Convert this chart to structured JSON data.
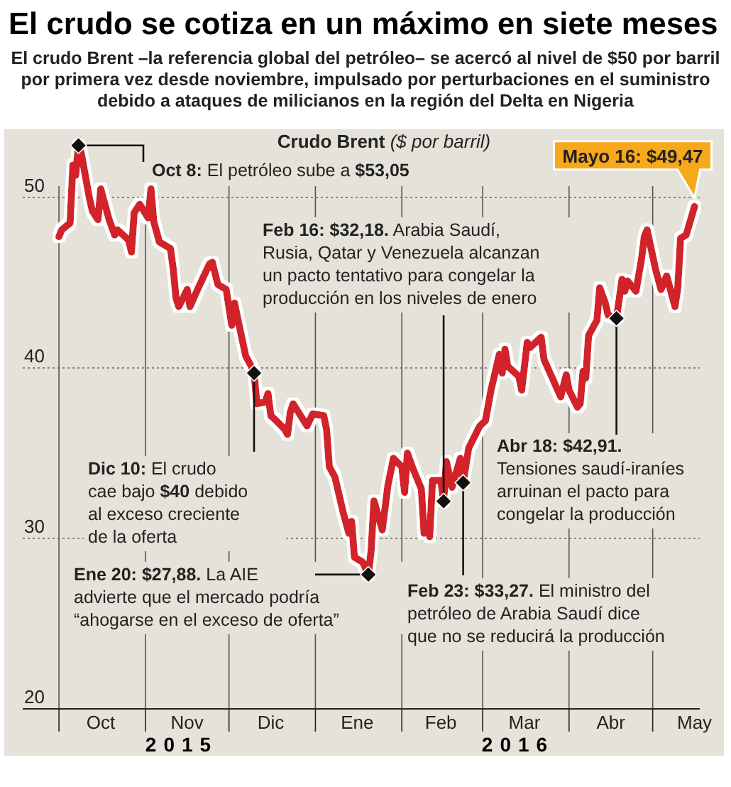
{
  "chart_data": {
    "type": "line",
    "title": "El crudo se cotiza en un máximo en siete meses",
    "subtitle": "El crudo Brent –la referencia global del petróleo– se acercó al nivel de $50 por barril por primera vez desde noviembre, impulsado por perturbaciones en el suministro debido a ataques de milicianos en la región del Delta en Nigeria",
    "ylabel": "Crudo Brent ($ por barril)",
    "xlim": [
      "2015-09-18",
      "2016-05-24"
    ],
    "ylim": [
      20,
      54
    ],
    "yticks": [
      20,
      30,
      40,
      50
    ],
    "xticks": [
      {
        "value": "2015-10-01",
        "label": null
      },
      {
        "value": "2015-10-16",
        "label": "Oct"
      },
      {
        "value": "2015-11-01",
        "label": null
      },
      {
        "value": "2015-11-16",
        "label": "Nov"
      },
      {
        "value": "2015-12-01",
        "label": null
      },
      {
        "value": "2015-12-16",
        "label": "Dic"
      },
      {
        "value": "2016-01-01",
        "label": null
      },
      {
        "value": "2016-01-16",
        "label": "Ene"
      },
      {
        "value": "2016-02-01",
        "label": null
      },
      {
        "value": "2016-02-15",
        "label": "Feb"
      },
      {
        "value": "2016-03-01",
        "label": null
      },
      {
        "value": "2016-03-16",
        "label": "Mar"
      },
      {
        "value": "2016-04-01",
        "label": null
      },
      {
        "value": "2016-04-16",
        "label": "Abr"
      },
      {
        "value": "2016-05-01",
        "label": null
      },
      {
        "value": "2016-05-16",
        "label": "May"
      }
    ],
    "grid": true,
    "marker": "none",
    "line_style": "solid",
    "x": [
      "2015-10-01",
      "2015-10-02",
      "2015-10-05",
      "2015-10-06",
      "2015-10-07",
      "2015-10-08",
      "2015-10-09",
      "2015-10-12",
      "2015-10-13",
      "2015-10-15",
      "2015-10-16",
      "2015-10-19",
      "2015-10-21",
      "2015-10-22",
      "2015-10-26",
      "2015-10-27",
      "2015-10-28",
      "2015-10-30",
      "2015-11-02",
      "2015-11-03",
      "2015-11-04",
      "2015-11-06",
      "2015-11-10",
      "2015-11-11",
      "2015-11-12",
      "2015-11-13",
      "2015-11-16",
      "2015-11-17",
      "2015-11-20",
      "2015-11-24",
      "2015-11-25",
      "2015-11-27",
      "2015-11-30",
      "2015-12-02",
      "2015-12-03",
      "2015-12-04",
      "2015-12-07",
      "2015-12-09",
      "2015-12-10",
      "2015-12-11",
      "2015-12-14",
      "2015-12-15",
      "2015-12-16",
      "2015-12-18",
      "2015-12-21",
      "2015-12-22",
      "2015-12-23",
      "2015-12-24",
      "2015-12-29",
      "2015-12-31",
      "2016-01-04",
      "2016-01-05",
      "2016-01-06",
      "2016-01-08",
      "2016-01-11",
      "2016-01-13",
      "2016-01-14",
      "2016-01-15",
      "2016-01-18",
      "2016-01-20",
      "2016-01-21",
      "2016-01-22",
      "2016-01-25",
      "2016-01-27",
      "2016-01-29",
      "2016-02-01",
      "2016-02-02",
      "2016-02-03",
      "2016-02-05",
      "2016-02-08",
      "2016-02-09",
      "2016-02-10",
      "2016-02-11",
      "2016-02-12",
      "2016-02-15",
      "2016-02-16",
      "2016-02-17",
      "2016-02-19",
      "2016-02-22",
      "2016-02-23",
      "2016-02-25",
      "2016-02-29",
      "2016-03-02",
      "2016-03-04",
      "2016-03-07",
      "2016-03-08",
      "2016-03-09",
      "2016-03-10",
      "2016-03-14",
      "2016-03-15",
      "2016-03-17",
      "2016-03-18",
      "2016-03-22",
      "2016-03-23",
      "2016-03-29",
      "2016-03-31",
      "2016-04-01",
      "2016-04-04",
      "2016-04-05",
      "2016-04-06",
      "2016-04-07",
      "2016-04-08",
      "2016-04-11",
      "2016-04-12",
      "2016-04-14",
      "2016-04-15",
      "2016-04-18",
      "2016-04-20",
      "2016-04-21",
      "2016-04-22",
      "2016-04-25",
      "2016-04-27",
      "2016-04-28",
      "2016-04-29",
      "2016-05-02",
      "2016-05-04",
      "2016-05-06",
      "2016-05-09",
      "2016-05-10",
      "2016-05-11",
      "2016-05-13",
      "2016-05-16"
    ],
    "series": [
      {
        "color": "#d2232a",
        "values": [
          47.7,
          48.1,
          48.5,
          51.9,
          51.3,
          53.05,
          52.6,
          49.9,
          49.2,
          48.7,
          50.5,
          48.7,
          47.8,
          48.1,
          47.5,
          46.8,
          49.1,
          49.6,
          48.8,
          50.5,
          48.6,
          47.4,
          47.0,
          45.8,
          44.1,
          43.6,
          44.6,
          43.6,
          44.7,
          46.1,
          46.2,
          44.9,
          44.6,
          42.5,
          43.8,
          43.0,
          40.7,
          40.1,
          39.7,
          37.9,
          38.0,
          38.5,
          37.2,
          36.9,
          36.4,
          36.1,
          37.4,
          37.9,
          36.6,
          37.3,
          37.2,
          36.4,
          34.2,
          33.6,
          31.5,
          30.3,
          31.0,
          28.9,
          28.6,
          27.88,
          29.3,
          32.2,
          30.5,
          33.1,
          34.7,
          34.2,
          32.7,
          35.0,
          34.1,
          32.9,
          30.3,
          30.8,
          30.1,
          33.4,
          33.4,
          32.18,
          34.5,
          33.0,
          34.7,
          33.27,
          35.3,
          36.6,
          36.9,
          38.7,
          40.8,
          39.7,
          41.1,
          40.1,
          39.5,
          38.7,
          41.5,
          41.2,
          41.8,
          40.5,
          38.3,
          39.6,
          38.7,
          37.7,
          37.9,
          39.8,
          39.4,
          41.9,
          42.8,
          44.7,
          43.8,
          43.1,
          42.91,
          45.2,
          44.5,
          45.1,
          44.5,
          46.4,
          47.7,
          48.1,
          45.8,
          44.6,
          45.4,
          43.6,
          44.7,
          47.6,
          47.8,
          49.47
        ]
      }
    ],
    "annotations": [
      {
        "text": "Oct 8: El petróleo sube a $53,05",
        "x": "2015-10-08",
        "y": 53.05
      },
      {
        "text": "Feb 16: $32,18. Arabia Saudí, Rusia, Qatar y Venezuela alcanzan un pacto tentativo para congelar la producción en los niveles de enero",
        "x": "2016-02-16",
        "y": 32.18
      },
      {
        "text": "Dic 10: El crudo cae bajo $40 debido al exceso creciente de la oferta",
        "x": "2015-12-10",
        "y": 39.7
      },
      {
        "text": "Ene 20: $27,88. La AIE advierte que el mercado podría “ahogarse en el exceso de oferta”",
        "x": "2016-01-20",
        "y": 27.88
      },
      {
        "text": "Feb 23: $33,27. El ministro del petróleo de Arabia Saudí dice que no se reducirá la producción",
        "x": "2016-02-23",
        "y": 33.27
      },
      {
        "text": "Abr 18: $42,91. Tensiones saudí-iraníes arruinan el pacto para congelar la producción",
        "x": "2016-04-18",
        "y": 42.91
      },
      {
        "text": "Mayo 16: $49,47",
        "x": "2016-05-16",
        "y": 49.47
      },
      "2015",
      "2016"
    ]
  }
}
